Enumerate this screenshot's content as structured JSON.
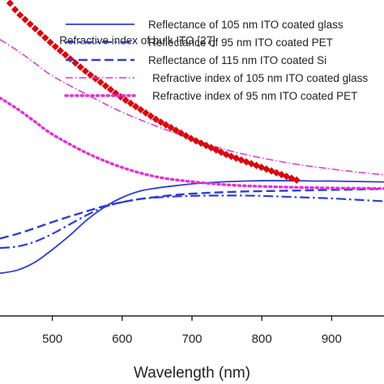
{
  "chart_data": {
    "type": "line",
    "title": "",
    "xlabel": "Wavelength (nm)",
    "ylabel": "",
    "xlim": [
      425,
      975
    ],
    "ylim": [
      0,
      1
    ],
    "grid": false,
    "legend_position": "top-right",
    "x_ticks": [
      500,
      600,
      700,
      800,
      900
    ],
    "x_tick_labels": [
      "500",
      "600",
      "700",
      "800",
      "900"
    ],
    "colors": {
      "blue": "#2e3ed6",
      "magenta": "#e52fd8",
      "red": "#d9070d",
      "axis": "#222222"
    },
    "annotations": [
      {
        "text": "Refractive index of bulk ITO [27]",
        "x": 510,
        "y": 0.86
      }
    ],
    "series": [
      {
        "name": "Reflectance of 105 nm ITO coated glass",
        "color": "#2e3ed6",
        "dash": "solid",
        "legend": true,
        "x": [
          425,
          450,
          475,
          500,
          525,
          550,
          575,
          600,
          625,
          650,
          675,
          700,
          725,
          750,
          775,
          800,
          825,
          850,
          875,
          900,
          925,
          950,
          975
        ],
        "y": [
          0.135,
          0.145,
          0.17,
          0.21,
          0.255,
          0.305,
          0.345,
          0.375,
          0.395,
          0.405,
          0.412,
          0.418,
          0.422,
          0.425,
          0.427,
          0.428,
          0.428,
          0.428,
          0.427,
          0.427,
          0.426,
          0.425,
          0.424
        ]
      },
      {
        "name": "Reflectance of 95 nm ITO coated PET",
        "color": "#2e3ed6",
        "dash": "dashdot",
        "legend": true,
        "x": [
          425,
          450,
          475,
          500,
          525,
          550,
          575,
          600,
          625,
          650,
          675,
          700,
          725,
          750,
          775,
          800,
          825,
          850,
          875,
          900,
          925,
          950,
          975
        ],
        "y": [
          0.215,
          0.22,
          0.235,
          0.26,
          0.29,
          0.32,
          0.345,
          0.36,
          0.37,
          0.375,
          0.378,
          0.38,
          0.381,
          0.381,
          0.381,
          0.38,
          0.378,
          0.376,
          0.374,
          0.372,
          0.369,
          0.366,
          0.363
        ]
      },
      {
        "name": "Reflectance of 115 nm ITO coated Si",
        "color": "#2e3ed6",
        "dash": "dashed",
        "legend": true,
        "x": [
          425,
          450,
          475,
          500,
          525,
          550,
          575,
          600,
          625,
          650,
          675,
          700,
          725,
          750,
          775,
          800,
          825,
          850,
          875,
          900,
          925,
          950,
          975
        ],
        "y": [
          0.245,
          0.26,
          0.278,
          0.297,
          0.315,
          0.332,
          0.348,
          0.36,
          0.37,
          0.377,
          0.383,
          0.387,
          0.39,
          0.392,
          0.394,
          0.395,
          0.396,
          0.397,
          0.398,
          0.399,
          0.4,
          0.401,
          0.402
        ]
      },
      {
        "name": "Refractive index of 105 nm ITO coated glass",
        "color": "#e52fd8",
        "dash": "dashdot-fine",
        "legend": true,
        "x": [
          425,
          450,
          475,
          500,
          550,
          600,
          650,
          700,
          750,
          800,
          850,
          900,
          950,
          975
        ],
        "y": [
          0.875,
          0.84,
          0.8,
          0.76,
          0.7,
          0.645,
          0.6,
          0.56,
          0.525,
          0.5,
          0.48,
          0.465,
          0.452,
          0.447
        ]
      },
      {
        "name": "Refractive index of 95 nm ITO coated PET",
        "color": "#e52fd8",
        "dash": "dotted",
        "legend": true,
        "x": [
          425,
          450,
          475,
          500,
          550,
          600,
          650,
          700,
          750,
          800,
          850,
          900,
          950,
          975
        ],
        "y": [
          0.69,
          0.655,
          0.615,
          0.575,
          0.515,
          0.47,
          0.44,
          0.425,
          0.415,
          0.41,
          0.407,
          0.405,
          0.404,
          0.403
        ]
      },
      {
        "name": "Refractive index of bulk ITO [27]",
        "color": "#d9070d",
        "dash": "markers",
        "legend": false,
        "x": [
          425,
          450,
          500,
          550,
          600,
          650,
          700,
          750,
          800,
          850
        ],
        "y": [
          1.03,
          0.96,
          0.86,
          0.77,
          0.69,
          0.62,
          0.56,
          0.51,
          0.47,
          0.43
        ]
      }
    ]
  }
}
